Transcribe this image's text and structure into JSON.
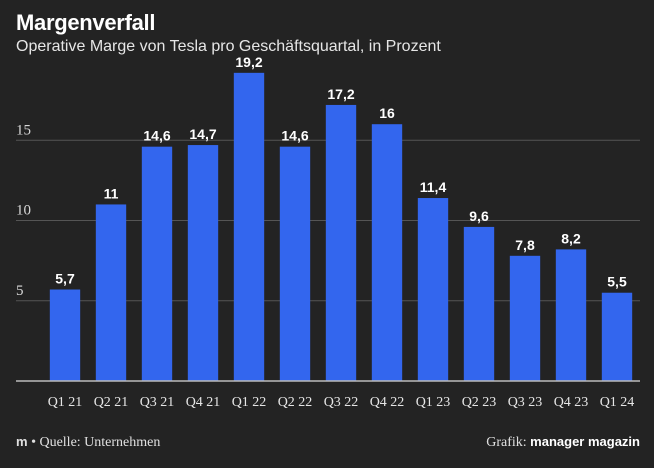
{
  "title": "Margenverfall",
  "subtitle": "Operative Marge von Tesla pro Geschäftsquartal, in Prozent",
  "footer": {
    "logo": "m",
    "bullet": "•",
    "source": "Quelle: Unternehmen",
    "credit_label": "Grafik:",
    "credit_brand": "manager magazin"
  },
  "colors": {
    "background": "#232323",
    "bar": "#3366ee",
    "grid": "#555555",
    "text": "#ffffff"
  },
  "chart_data": {
    "type": "bar",
    "title": "Margenverfall",
    "subtitle": "Operative Marge von Tesla pro Geschäftsquartal, in Prozent",
    "categories": [
      "Q1 21",
      "Q2 21",
      "Q3 21",
      "Q4 21",
      "Q1 22",
      "Q2 22",
      "Q3 22",
      "Q4 22",
      "Q1 23",
      "Q2 23",
      "Q3 23",
      "Q4 23",
      "Q1 24"
    ],
    "values": [
      5.7,
      11,
      14.6,
      14.7,
      19.2,
      14.6,
      17.2,
      16,
      11.4,
      9.6,
      7.8,
      8.2,
      5.5
    ],
    "value_labels": [
      "5,7",
      "11",
      "14,6",
      "14,7",
      "19,2",
      "14,6",
      "17,2",
      "16",
      "11,4",
      "9,6",
      "7,8",
      "8,2",
      "5,5"
    ],
    "yticks": [
      5,
      10,
      15
    ],
    "ytick_labels": [
      "5",
      "10",
      "15"
    ],
    "ylim": [
      0,
      20
    ],
    "grid": true,
    "legend": "none"
  }
}
